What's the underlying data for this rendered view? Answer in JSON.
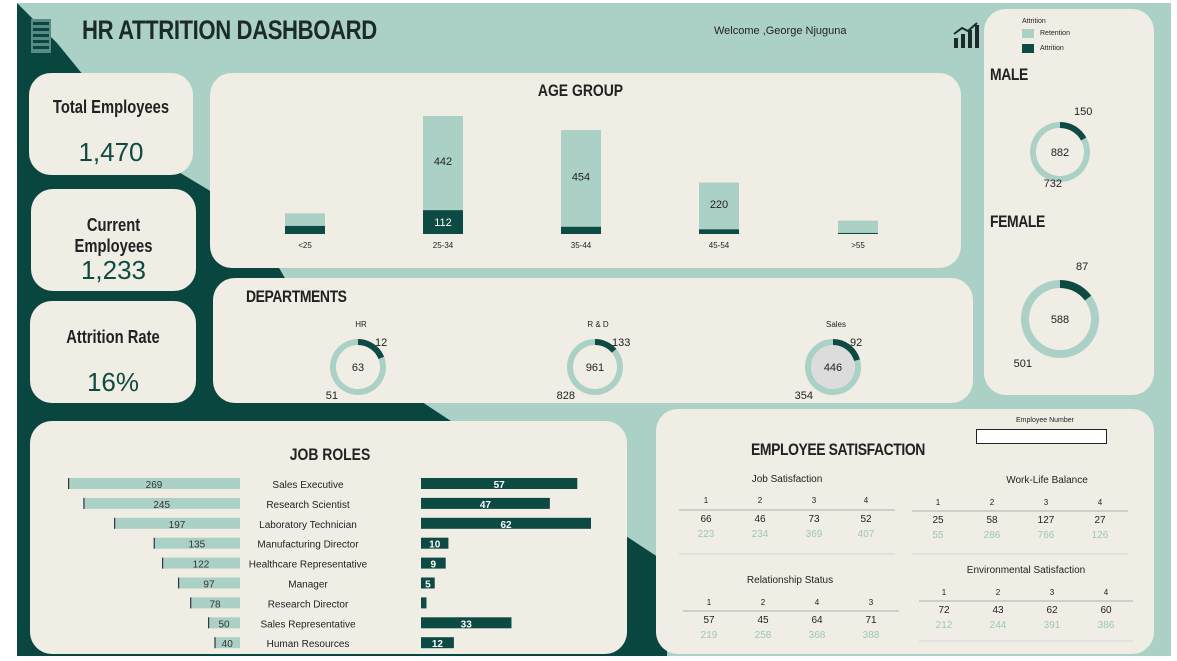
{
  "header": {
    "title": "HR ATTRITION DASHBOARD",
    "welcome": "Welcome ,George Njuguna"
  },
  "legend": {
    "title": "Attrition",
    "items": [
      {
        "label": "Retention",
        "color": "#abd1c6"
      },
      {
        "label": "Attrition",
        "color": "#0d4a43"
      }
    ]
  },
  "colors": {
    "retention": "#abd1c6",
    "attrition": "#0d4a43",
    "card": "#f0ede5",
    "dark": "#0a4640"
  },
  "kpis": [
    {
      "label": "Total Employees",
      "value": "1,470"
    },
    {
      "label": "Current Employees",
      "value": "1,233"
    },
    {
      "label": "Attrition Rate",
      "value": "16%"
    }
  ],
  "employee_number": {
    "label": "Employee Number",
    "value": ""
  },
  "chart_data": [
    {
      "type": "bar",
      "title": "AGE GROUP",
      "categories": [
        "<25",
        "25-34",
        "35-44",
        "45-54",
        ">55"
      ],
      "series": [
        {
          "name": "Attrition",
          "values": [
            38,
            112,
            34,
            22,
            5
          ]
        },
        {
          "name": "Retention",
          "values": [
            59,
            442,
            454,
            220,
            58
          ]
        }
      ],
      "data_labels": [
        "",
        "442|112",
        "454|",
        "220|",
        ""
      ]
    },
    {
      "type": "pie",
      "title": "DEPARTMENTS",
      "donuts": [
        {
          "name": "HR",
          "center": "63",
          "attrition": 12,
          "retention": 51
        },
        {
          "name": "R & D",
          "center": "961",
          "attrition": 133,
          "retention": 828
        },
        {
          "name": "Sales",
          "center": "446",
          "attrition": 92,
          "retention": 354
        }
      ]
    },
    {
      "type": "pie",
      "title": "MALE",
      "center": "882",
      "attrition": 150,
      "retention": 732
    },
    {
      "type": "pie",
      "title": "FEMALE",
      "center": "588",
      "attrition": 87,
      "retention": 501
    },
    {
      "type": "bar",
      "title": "JOB ROLES",
      "categories": [
        "Sales Executive",
        "Research Scientist",
        "Laboratory Technician",
        "Manufacturing Director",
        "Healthcare Representative",
        "Manager",
        "Research Director",
        "Sales Representative",
        "Human Resources"
      ],
      "series": [
        {
          "name": "Retention",
          "values": [
            269,
            245,
            197,
            135,
            122,
            97,
            78,
            50,
            40
          ]
        },
        {
          "name": "Attrition",
          "values": [
            57,
            47,
            62,
            10,
            9,
            5,
            2,
            33,
            12
          ]
        }
      ],
      "attrition_labels": [
        "57",
        "47",
        "62",
        "10",
        "9",
        "5",
        "",
        "33",
        "12"
      ]
    },
    {
      "type": "table",
      "title": "EMPLOYEE SATISFACTION",
      "tables": [
        {
          "name": "Job Satisfaction",
          "headers": [
            "1",
            "2",
            "3",
            "4"
          ],
          "attrition": [
            "66",
            "46",
            "73",
            "52"
          ],
          "retention": [
            "223",
            "234",
            "369",
            "407"
          ]
        },
        {
          "name": "Work-Life Balance",
          "headers": [
            "1",
            "2",
            "3",
            "4"
          ],
          "attrition": [
            "25",
            "58",
            "127",
            "27"
          ],
          "retention": [
            "55",
            "286",
            "766",
            "126"
          ]
        },
        {
          "name": "Relationship Status",
          "headers": [
            "1",
            "2",
            "4",
            "3"
          ],
          "attrition": [
            "57",
            "45",
            "64",
            "71"
          ],
          "retention": [
            "219",
            "258",
            "368",
            "388"
          ]
        },
        {
          "name": "Environmental Satisfaction",
          "headers": [
            "1",
            "2",
            "3",
            "4"
          ],
          "attrition": [
            "72",
            "43",
            "62",
            "60"
          ],
          "retention": [
            "212",
            "244",
            "391",
            "386"
          ]
        }
      ]
    }
  ]
}
